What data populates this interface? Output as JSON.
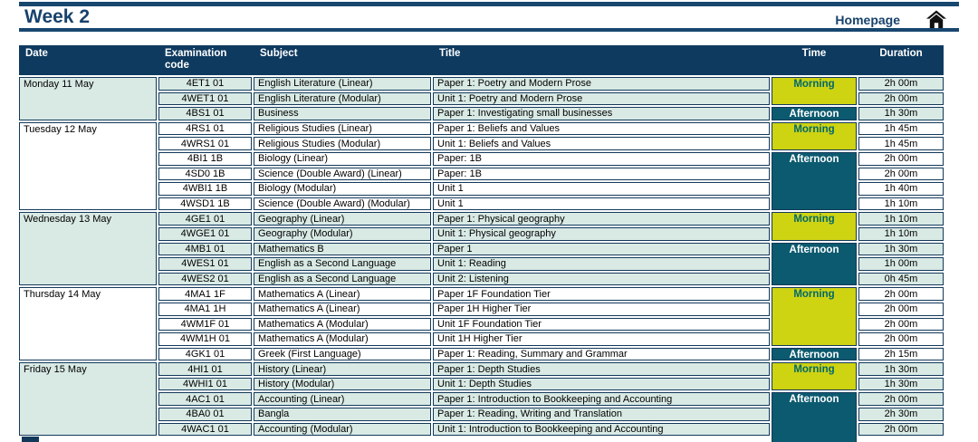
{
  "page": {
    "title": "Week 2",
    "homepage_label": "Homepage"
  },
  "colors": {
    "navy_accent": "#17416b",
    "header_bg": "#0e3a5f",
    "cell_border": "#12395a",
    "group_green_bg": "#d9eae5",
    "group_white_bg": "#ffffff",
    "morning_bg": "#ced312",
    "morning_text": "#00696b",
    "afternoon_bg": "#0c5a6f",
    "afternoon_text": "#ffffff"
  },
  "icons": {
    "home": "home-icon"
  },
  "table": {
    "headers": [
      "Date",
      "Examination code",
      "Subject",
      "Title",
      "Time",
      "Duration"
    ],
    "groups": [
      {
        "date": "Monday 11 May",
        "bg": "green",
        "rows": [
          {
            "code": "4ET1 01",
            "subject": "English Literature (Linear)",
            "title": "Paper 1: Poetry and Modern Prose",
            "duration": "2h 00m"
          },
          {
            "code": "4WET1 01",
            "subject": "English Literature (Modular)",
            "title": "Unit 1: Poetry and Modern Prose",
            "duration": "2h 00m"
          },
          {
            "code": "4BS1 01",
            "subject": "Business",
            "title": "Paper 1: Investigating small businesses",
            "duration": "1h 30m"
          }
        ],
        "sessions": [
          {
            "label": "Morning",
            "rows": 2
          },
          {
            "label": "Afternoon",
            "rows": 1
          }
        ]
      },
      {
        "date": "Tuesday 12 May",
        "bg": "white",
        "rows": [
          {
            "code": "4RS1 01",
            "subject": "Religious Studies (Linear)",
            "title": "Paper 1: Beliefs and Values",
            "duration": "1h 45m"
          },
          {
            "code": "4WRS1 01",
            "subject": "Religious Studies (Modular)",
            "title": "Unit 1: Beliefs and Values",
            "duration": "1h 45m"
          },
          {
            "code": "4BI1 1B",
            "subject": "Biology (Linear)",
            "title": "Paper: 1B",
            "duration": "2h 00m"
          },
          {
            "code": "4SD0 1B",
            "subject": "Science (Double Award) (Linear)",
            "title": "Paper: 1B",
            "duration": "2h 00m"
          },
          {
            "code": "4WBI1 1B",
            "subject": "Biology (Modular)",
            "title": "Unit 1",
            "duration": "1h 40m"
          },
          {
            "code": "4WSD1 1B",
            "subject": "Science (Double Award) (Modular)",
            "title": "Unit 1",
            "duration": "1h 10m"
          }
        ],
        "sessions": [
          {
            "label": "Morning",
            "rows": 2
          },
          {
            "label": "Afternoon",
            "rows": 4
          }
        ]
      },
      {
        "date": "Wednesday 13 May",
        "bg": "green",
        "rows": [
          {
            "code": "4GE1 01",
            "subject": "Geography (Linear)",
            "title": "Paper 1: Physical geography",
            "duration": "1h 10m"
          },
          {
            "code": "4WGE1 01",
            "subject": "Geography (Modular)",
            "title": "Unit 1: Physical geography",
            "duration": "1h 10m"
          },
          {
            "code": "4MB1 01",
            "subject": "Mathematics B",
            "title": "Paper 1",
            "duration": "1h 30m"
          },
          {
            "code": "4WES1 01",
            "subject": "English as a Second Language",
            "title": "Unit 1: Reading",
            "duration": "1h 00m"
          },
          {
            "code": "4WES2 01",
            "subject": "English as a Second Language",
            "title": "Unit 2: Listening",
            "duration": "0h 45m"
          }
        ],
        "sessions": [
          {
            "label": "Morning",
            "rows": 2
          },
          {
            "label": "Afternoon",
            "rows": 3
          }
        ]
      },
      {
        "date": "Thursday 14 May",
        "bg": "white",
        "rows": [
          {
            "code": "4MA1 1F",
            "subject": "Mathematics A (Linear)",
            "title": "Paper 1F Foundation Tier",
            "duration": "2h 00m"
          },
          {
            "code": "4MA1 1H",
            "subject": "Mathematics A (Linear)",
            "title": "Paper 1H Higher Tier",
            "duration": "2h 00m"
          },
          {
            "code": "4WM1F 01",
            "subject": "Mathematics A (Modular)",
            "title": "Unit 1F Foundation Tier",
            "duration": "2h 00m"
          },
          {
            "code": "4WM1H 01",
            "subject": "Mathematics A (Modular)",
            "title": "Unit 1H Higher Tier",
            "duration": "2h 00m"
          },
          {
            "code": "4GK1 01",
            "subject": "Greek (First Language)",
            "title": "Paper 1: Reading, Summary and Grammar",
            "duration": "2h 15m"
          }
        ],
        "sessions": [
          {
            "label": "Morning",
            "rows": 4
          },
          {
            "label": "Afternoon",
            "rows": 1
          }
        ]
      },
      {
        "date": "Friday 15 May",
        "bg": "green",
        "rows": [
          {
            "code": "4HI1 01",
            "subject": "History (Linear)",
            "title": "Paper 1: Depth Studies",
            "duration": "1h 30m"
          },
          {
            "code": "4WHI1 01",
            "subject": "History (Modular)",
            "title": "Unit 1: Depth Studies",
            "duration": "1h 30m"
          },
          {
            "code": "4AC1 01",
            "subject": "Accounting (Linear)",
            "title": "Paper 1: Introduction to Bookkeeping and Accounting",
            "duration": "2h 00m"
          },
          {
            "code": "4BA0 01",
            "subject": "Bangla",
            "title": "Paper 1: Reading, Writing and Translation",
            "duration": "2h 30m"
          },
          {
            "code": "4WAC1 01",
            "subject": "Accounting (Modular)",
            "title": "Unit 1: Introduction to Bookkeeping and Accounting",
            "duration": "2h 00m"
          }
        ],
        "sessions": [
          {
            "label": "Morning",
            "rows": 2
          },
          {
            "label": "Afternoon",
            "rows": 3,
            "extends_below": true
          }
        ]
      }
    ]
  }
}
